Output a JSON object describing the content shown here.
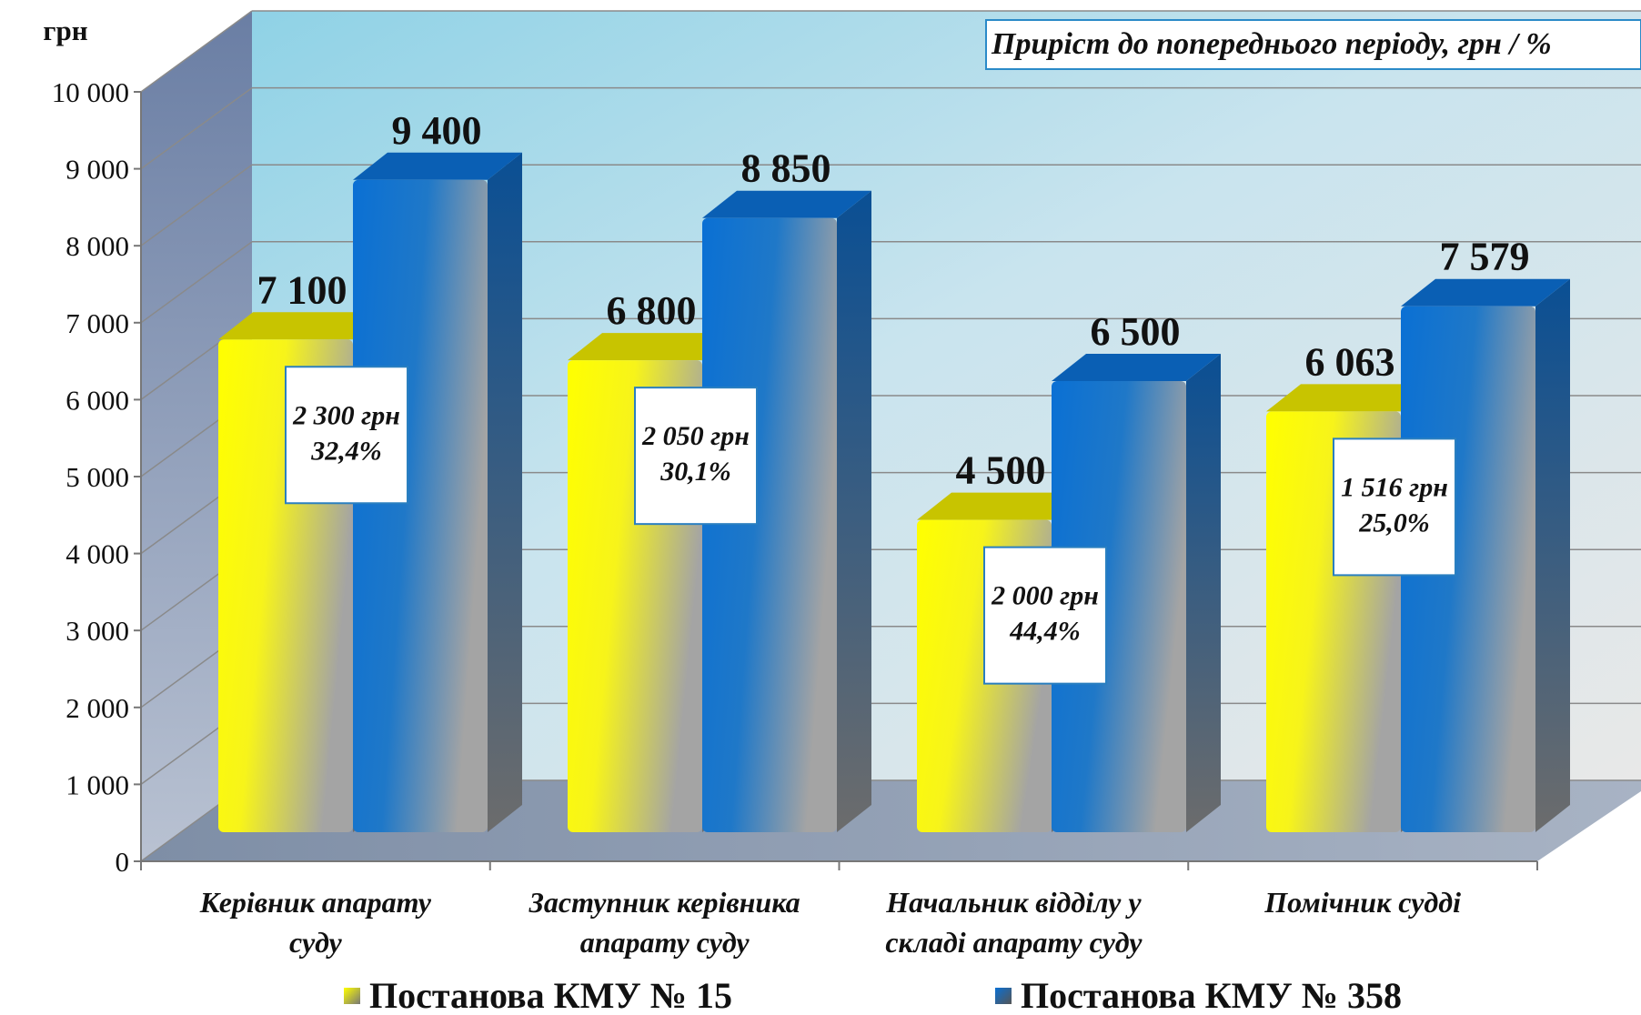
{
  "chart_data": {
    "type": "bar",
    "unit": "грн",
    "note": "Приріст до попереднього періоду, грн / %",
    "ylim": [
      0,
      10000
    ],
    "yticks": [
      "0",
      "1 000",
      "2 000",
      "3 000",
      "4 000",
      "5 000",
      "6 000",
      "7 000",
      "8 000",
      "9 000",
      "10 000"
    ],
    "categories": [
      [
        "Керівник апарату",
        "суду"
      ],
      [
        "Заступник керівника",
        "апарату суду"
      ],
      [
        "Начальник відділу у",
        "складі апарату суду"
      ],
      [
        "Помічник судді"
      ]
    ],
    "series": [
      {
        "name": "Постанова КМУ № 15",
        "color": "#ffff00",
        "values": [
          7100,
          6800,
          4500,
          6063
        ],
        "labels": [
          "7 100",
          "6 800",
          "4 500",
          "6 063"
        ]
      },
      {
        "name": "Постанова КМУ № 358",
        "color": "#0a6fd0",
        "values": [
          9400,
          8850,
          6500,
          7579
        ],
        "labels": [
          "9 400",
          "8 850",
          "6 500",
          "7 579"
        ]
      }
    ],
    "annotations": [
      {
        "amount": "2 300 грн",
        "percent": "32,4%"
      },
      {
        "amount": "2 050 грн",
        "percent": "30,1%"
      },
      {
        "amount": "2 000 грн",
        "percent": "44,4%"
      },
      {
        "amount": "1 516 грн",
        "percent": "25,0%"
      }
    ],
    "grid": true,
    "legend": "bottom"
  }
}
